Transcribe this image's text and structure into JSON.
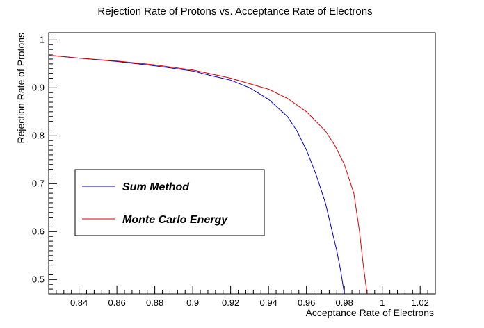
{
  "chart_data": {
    "type": "line",
    "title": "Rejection Rate of Protons vs. Acceptance Rate of Electrons",
    "xlabel": "Acceptance Rate of Electrons",
    "ylabel": "Rejection Rate of Protons",
    "xlim": [
      0.824,
      1.028
    ],
    "ylim": [
      0.47,
      1.015
    ],
    "x_ticks": [
      "0.84",
      "0.86",
      "0.88",
      "0.9",
      "0.92",
      "0.94",
      "0.96",
      "0.98",
      "1",
      "1.02"
    ],
    "y_ticks": [
      "0.5",
      "0.6",
      "0.7",
      "0.8",
      "0.9",
      "1"
    ],
    "grid": false,
    "legend_position": "middle-left",
    "series": [
      {
        "name": "Sum Method",
        "color": "#0000cc",
        "x": [
          0.824,
          0.84,
          0.86,
          0.88,
          0.9,
          0.91,
          0.92,
          0.93,
          0.94,
          0.95,
          0.955,
          0.96,
          0.965,
          0.97,
          0.973,
          0.976,
          0.978,
          0.98
        ],
        "y": [
          0.968,
          0.962,
          0.955,
          0.946,
          0.935,
          0.925,
          0.916,
          0.9,
          0.876,
          0.84,
          0.81,
          0.77,
          0.72,
          0.66,
          0.61,
          0.56,
          0.52,
          0.47
        ]
      },
      {
        "name": "Monte Carlo Energy",
        "color": "#dd0000",
        "x": [
          0.824,
          0.84,
          0.86,
          0.88,
          0.9,
          0.92,
          0.94,
          0.95,
          0.96,
          0.97,
          0.975,
          0.98,
          0.985,
          0.988,
          0.99,
          0.992
        ],
        "y": [
          0.968,
          0.962,
          0.956,
          0.948,
          0.937,
          0.92,
          0.897,
          0.878,
          0.85,
          0.81,
          0.78,
          0.74,
          0.68,
          0.6,
          0.53,
          0.47
        ]
      }
    ]
  }
}
